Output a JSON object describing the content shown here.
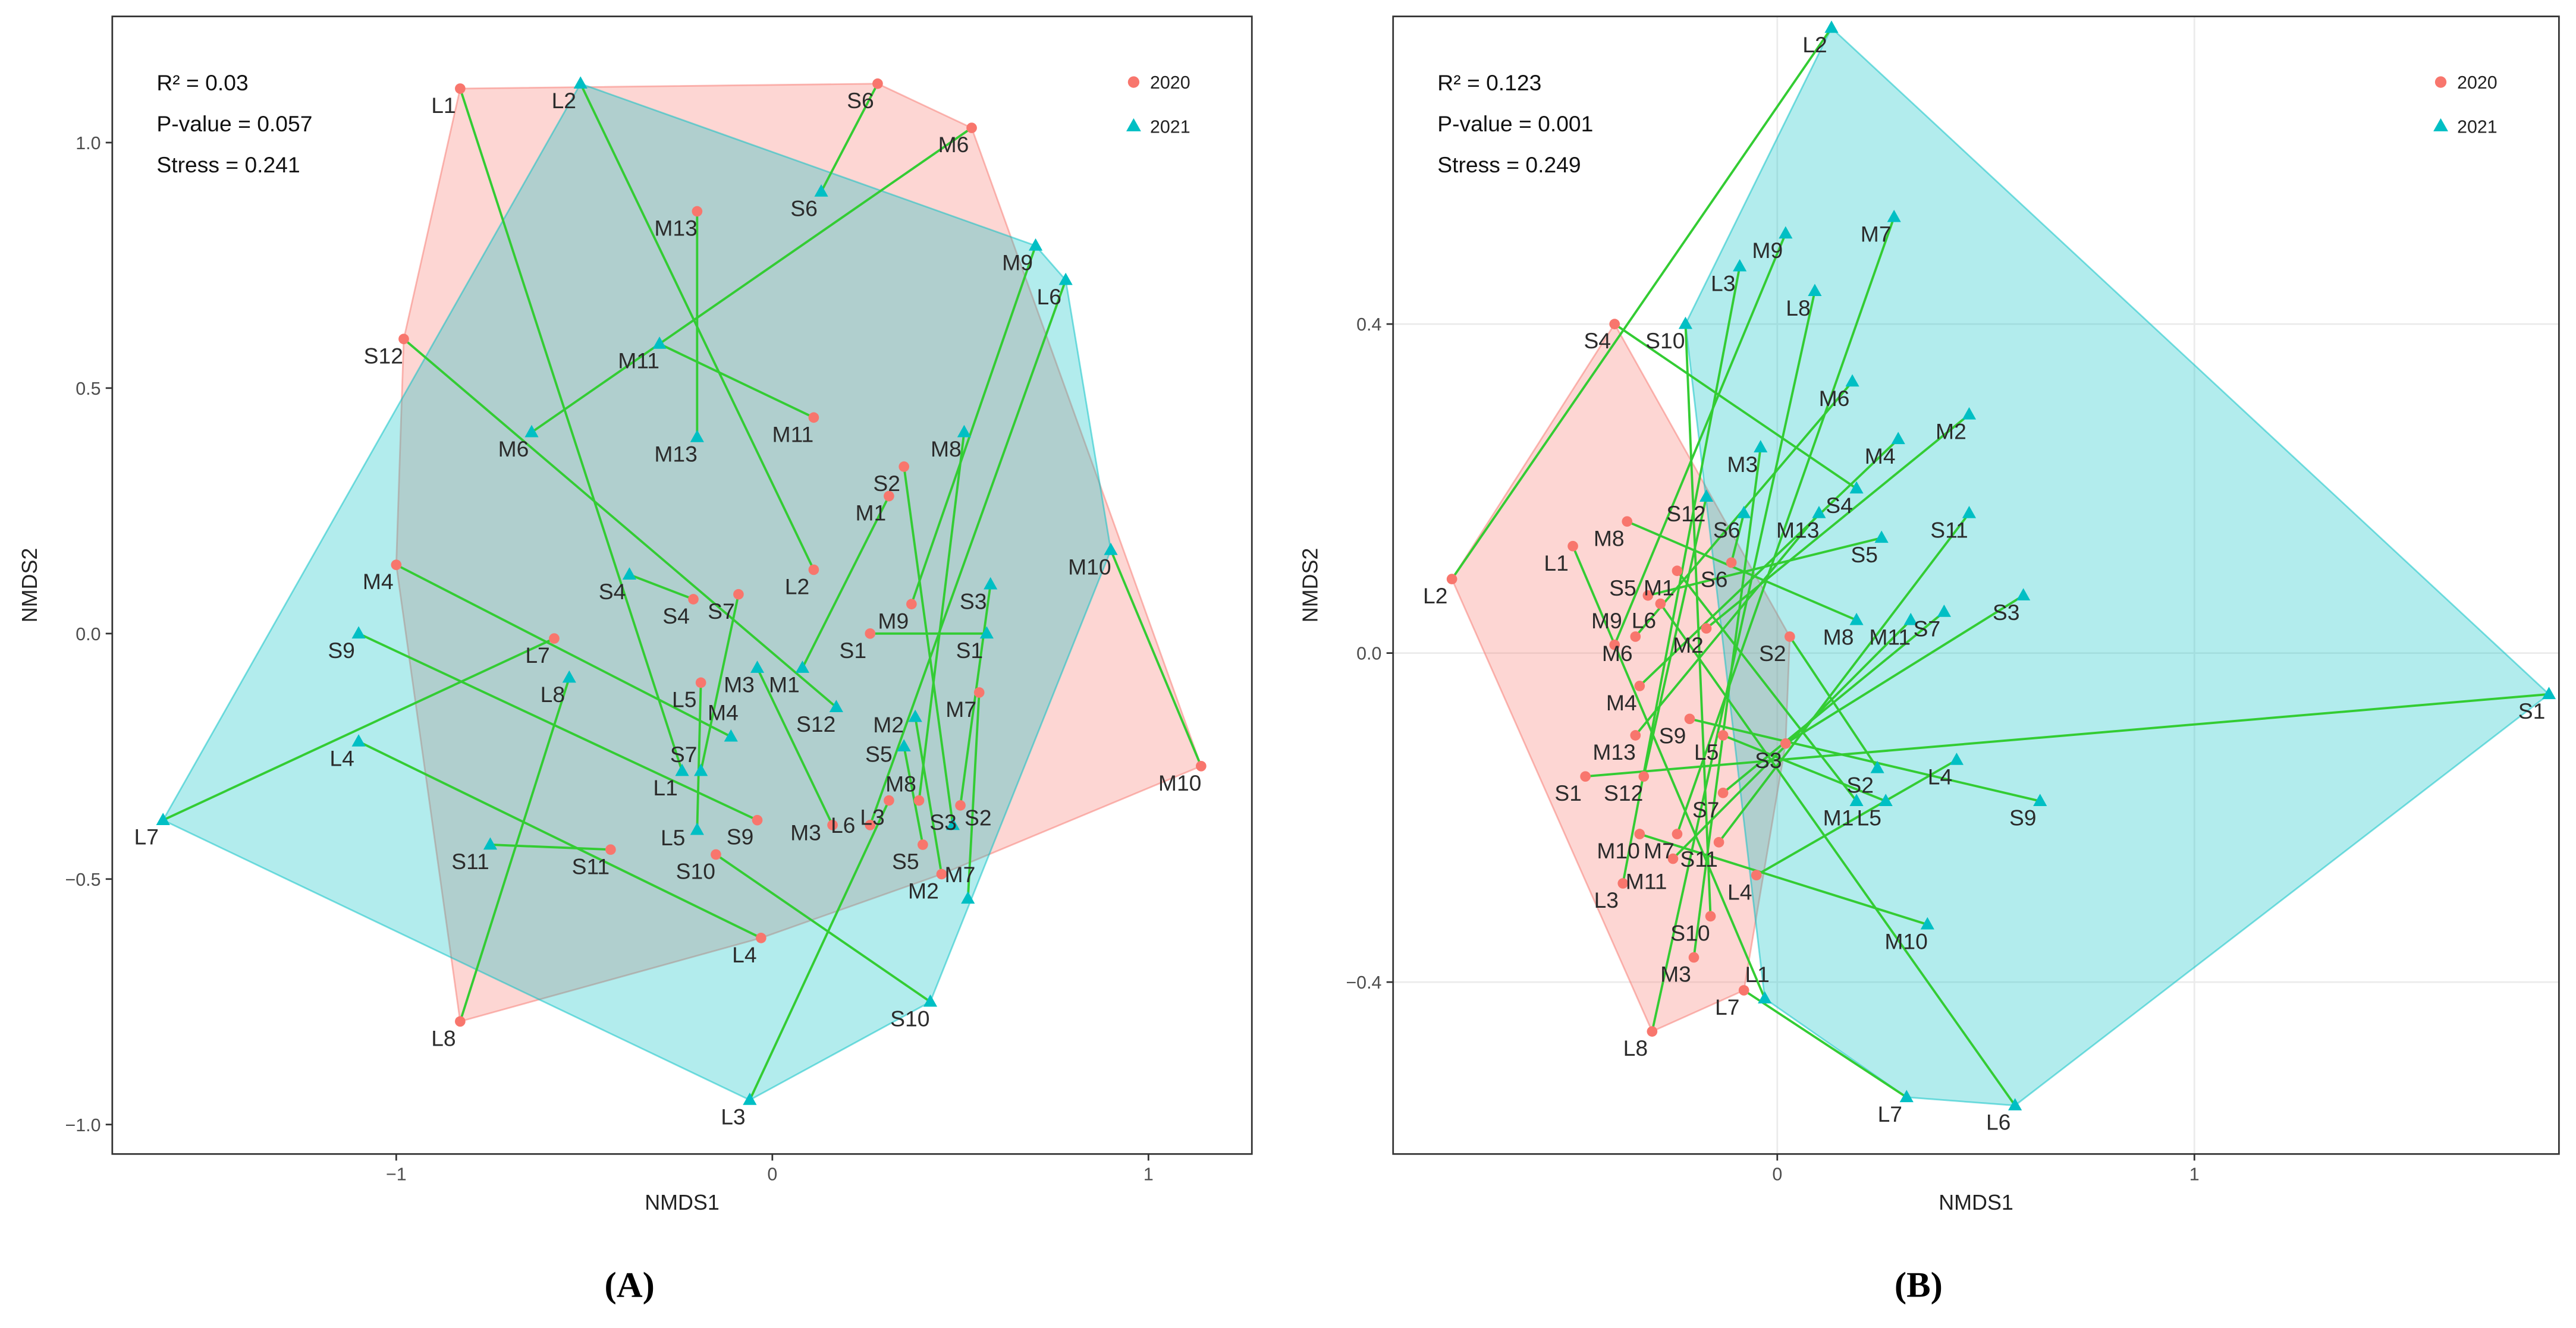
{
  "colors": {
    "y2020": "#F8766D",
    "y2021": "#00BFC4",
    "link": "#33CC33"
  },
  "chart_data": [
    {
      "type": "scatter",
      "panel_label": "(A)",
      "xlabel": "NMDS1",
      "ylabel": "NMDS2",
      "xlim": [
        -1.755,
        1.275
      ],
      "ylim": [
        -1.06,
        1.257
      ],
      "xticks": [
        {
          "v": -1,
          "t": "−1"
        },
        {
          "v": 0,
          "t": "0"
        },
        {
          "v": 1,
          "t": "1"
        }
      ],
      "yticks": [
        {
          "v": -1,
          "t": "−1.0"
        },
        {
          "v": -0.5,
          "t": "−0.5"
        },
        {
          "v": 0,
          "t": "0.0"
        },
        {
          "v": 0.5,
          "t": "0.5"
        },
        {
          "v": 1,
          "t": "1.0"
        }
      ],
      "grid": false,
      "annotations": [
        "R² = 0.03",
        "P-value = 0.057",
        "Stress = 0.241"
      ],
      "legend": {
        "position": "top-right",
        "entries": [
          "2020",
          "2021"
        ]
      },
      "series": [
        {
          "name": "2020",
          "marker": "circle",
          "points": [
            {
              "label": "L1",
              "x": -0.83,
              "y": 1.11
            },
            {
              "label": "L2",
              "x": 0.11,
              "y": 0.13
            },
            {
              "label": "L3",
              "x": 0.31,
              "y": -0.34
            },
            {
              "label": "L4",
              "x": -0.03,
              "y": -0.62
            },
            {
              "label": "L5",
              "x": -0.19,
              "y": -0.1
            },
            {
              "label": "L6",
              "x": 0.26,
              "y": -0.39
            },
            {
              "label": "L7",
              "x": -0.58,
              "y": -0.01
            },
            {
              "label": "L8",
              "x": -0.83,
              "y": -0.79
            },
            {
              "label": "S1",
              "x": 0.26,
              "y": 0.0
            },
            {
              "label": "S2",
              "x": 0.35,
              "y": 0.34
            },
            {
              "label": "S3",
              "x": 0.5,
              "y": -0.35
            },
            {
              "label": "S4",
              "x": -0.21,
              "y": 0.07
            },
            {
              "label": "S5",
              "x": 0.4,
              "y": -0.43
            },
            {
              "label": "S6",
              "x": 0.28,
              "y": 1.12
            },
            {
              "label": "S7",
              "x": -0.09,
              "y": 0.08
            },
            {
              "label": "S9",
              "x": -0.04,
              "y": -0.38
            },
            {
              "label": "S10",
              "x": -0.15,
              "y": -0.45
            },
            {
              "label": "S11",
              "x": -0.43,
              "y": -0.44
            },
            {
              "label": "S12",
              "x": -0.98,
              "y": 0.6
            },
            {
              "label": "M1",
              "x": 0.31,
              "y": 0.28
            },
            {
              "label": "M2",
              "x": 0.45,
              "y": -0.49
            },
            {
              "label": "M3",
              "x": 0.16,
              "y": -0.39
            },
            {
              "label": "M4",
              "x": -1.0,
              "y": 0.14
            },
            {
              "label": "M6",
              "x": 0.53,
              "y": 1.03
            },
            {
              "label": "M7",
              "x": 0.55,
              "y": -0.12
            },
            {
              "label": "M8",
              "x": 0.39,
              "y": -0.34
            },
            {
              "label": "M9",
              "x": 0.37,
              "y": 0.06
            },
            {
              "label": "M10",
              "x": 1.14,
              "y": -0.27
            },
            {
              "label": "M11",
              "x": 0.11,
              "y": 0.44
            },
            {
              "label": "M13",
              "x": -0.2,
              "y": 0.86
            }
          ]
        },
        {
          "name": "2021",
          "marker": "triangle",
          "points": [
            {
              "label": "L1",
              "x": -0.24,
              "y": -0.28
            },
            {
              "label": "L2",
              "x": -0.51,
              "y": 1.12
            },
            {
              "label": "L3",
              "x": -0.06,
              "y": -0.95
            },
            {
              "label": "L4",
              "x": -1.1,
              "y": -0.22
            },
            {
              "label": "L5",
              "x": -0.2,
              "y": -0.4
            },
            {
              "label": "L6",
              "x": 0.78,
              "y": 0.72
            },
            {
              "label": "L7",
              "x": -1.62,
              "y": -0.38
            },
            {
              "label": "L8",
              "x": -0.54,
              "y": -0.09
            },
            {
              "label": "S1",
              "x": 0.57,
              "y": 0.0
            },
            {
              "label": "S2",
              "x": 0.48,
              "y": -0.39
            },
            {
              "label": "S3",
              "x": 0.58,
              "y": 0.1
            },
            {
              "label": "S4",
              "x": -0.38,
              "y": 0.12
            },
            {
              "label": "S5",
              "x": 0.35,
              "y": -0.23
            },
            {
              "label": "S6",
              "x": 0.13,
              "y": 0.9
            },
            {
              "label": "S7",
              "x": -0.19,
              "y": -0.28
            },
            {
              "label": "S9",
              "x": -1.1,
              "y": 0.0
            },
            {
              "label": "S10",
              "x": 0.42,
              "y": -0.75
            },
            {
              "label": "S11",
              "x": -0.75,
              "y": -0.43
            },
            {
              "label": "S12",
              "x": 0.17,
              "y": -0.15
            },
            {
              "label": "M1",
              "x": 0.08,
              "y": -0.07
            },
            {
              "label": "M2",
              "x": 0.38,
              "y": -0.17
            },
            {
              "label": "M3",
              "x": -0.04,
              "y": -0.07
            },
            {
              "label": "M4",
              "x": -0.11,
              "y": -0.21
            },
            {
              "label": "M6",
              "x": -0.64,
              "y": 0.41
            },
            {
              "label": "M7",
              "x": 0.52,
              "y": -0.54
            },
            {
              "label": "M8",
              "x": 0.51,
              "y": 0.41
            },
            {
              "label": "M9",
              "x": 0.7,
              "y": 0.79
            },
            {
              "label": "M10",
              "x": 0.9,
              "y": 0.17
            },
            {
              "label": "M11",
              "x": -0.3,
              "y": 0.59
            },
            {
              "label": "M13",
              "x": -0.2,
              "y": 0.4
            }
          ]
        }
      ]
    },
    {
      "type": "scatter",
      "panel_label": "(B)",
      "xlabel": "NMDS1",
      "ylabel": "NMDS2",
      "xlim": [
        -0.921,
        1.874
      ],
      "ylim": [
        -0.609,
        0.774
      ],
      "xticks": [
        {
          "v": 0,
          "t": "0"
        },
        {
          "v": 1,
          "t": "1"
        }
      ],
      "yticks": [
        {
          "v": -0.4,
          "t": "−0.4"
        },
        {
          "v": 0,
          "t": "0.0"
        },
        {
          "v": 0.4,
          "t": "0.4"
        }
      ],
      "grid": true,
      "annotations": [
        "R² = 0.123",
        "P-value = 0.001",
        "Stress = 0.249"
      ],
      "legend": {
        "position": "top-right",
        "entries": [
          "2020",
          "2021"
        ]
      },
      "series": [
        {
          "name": "2020",
          "marker": "circle",
          "points": [
            {
              "label": "L1",
              "x": -0.49,
              "y": 0.13
            },
            {
              "label": "L2",
              "x": -0.78,
              "y": 0.09
            },
            {
              "label": "L3",
              "x": -0.37,
              "y": -0.28
            },
            {
              "label": "L4",
              "x": -0.05,
              "y": -0.27
            },
            {
              "label": "L5",
              "x": -0.13,
              "y": -0.1
            },
            {
              "label": "L6",
              "x": -0.28,
              "y": 0.06
            },
            {
              "label": "L7",
              "x": -0.08,
              "y": -0.41
            },
            {
              "label": "L8",
              "x": -0.3,
              "y": -0.46
            },
            {
              "label": "S1",
              "x": -0.46,
              "y": -0.15
            },
            {
              "label": "S2",
              "x": 0.03,
              "y": 0.02
            },
            {
              "label": "S3",
              "x": 0.02,
              "y": -0.11
            },
            {
              "label": "S4",
              "x": -0.39,
              "y": 0.4
            },
            {
              "label": "S5",
              "x": -0.31,
              "y": 0.07
            },
            {
              "label": "S6",
              "x": -0.11,
              "y": 0.11
            },
            {
              "label": "S7",
              "x": -0.13,
              "y": -0.17
            },
            {
              "label": "S9",
              "x": -0.21,
              "y": -0.08
            },
            {
              "label": "S10",
              "x": -0.16,
              "y": -0.32
            },
            {
              "label": "S11",
              "x": -0.14,
              "y": -0.23
            },
            {
              "label": "S12",
              "x": -0.32,
              "y": -0.15
            },
            {
              "label": "M1",
              "x": -0.24,
              "y": 0.1
            },
            {
              "label": "M2",
              "x": -0.17,
              "y": 0.03
            },
            {
              "label": "M3",
              "x": -0.2,
              "y": -0.37
            },
            {
              "label": "M4",
              "x": -0.33,
              "y": -0.04
            },
            {
              "label": "M6",
              "x": -0.34,
              "y": 0.02
            },
            {
              "label": "M7",
              "x": -0.24,
              "y": -0.22
            },
            {
              "label": "M8",
              "x": -0.36,
              "y": 0.16
            },
            {
              "label": "M9",
              "x": -0.39,
              "y": 0.01
            },
            {
              "label": "M10",
              "x": -0.33,
              "y": -0.22
            },
            {
              "label": "M11",
              "x": -0.25,
              "y": -0.25
            },
            {
              "label": "M13",
              "x": -0.34,
              "y": -0.1
            }
          ]
        },
        {
          "name": "2021",
          "marker": "triangle",
          "points": [
            {
              "label": "L1",
              "x": -0.03,
              "y": -0.42
            },
            {
              "label": "L2",
              "x": 0.13,
              "y": 0.76
            },
            {
              "label": "L3",
              "x": -0.09,
              "y": 0.47
            },
            {
              "label": "L4",
              "x": 0.43,
              "y": -0.13
            },
            {
              "label": "L5",
              "x": 0.26,
              "y": -0.18
            },
            {
              "label": "L6",
              "x": 0.57,
              "y": -0.55
            },
            {
              "label": "L7",
              "x": 0.31,
              "y": -0.54
            },
            {
              "label": "L8",
              "x": 0.09,
              "y": 0.44
            },
            {
              "label": "S1",
              "x": 1.85,
              "y": -0.05
            },
            {
              "label": "S2",
              "x": 0.24,
              "y": -0.14
            },
            {
              "label": "S3",
              "x": 0.59,
              "y": 0.07
            },
            {
              "label": "S4",
              "x": 0.19,
              "y": 0.2
            },
            {
              "label": "S5",
              "x": 0.25,
              "y": 0.14
            },
            {
              "label": "S6",
              "x": -0.08,
              "y": 0.17
            },
            {
              "label": "S7",
              "x": 0.4,
              "y": 0.05
            },
            {
              "label": "S9",
              "x": 0.63,
              "y": -0.18
            },
            {
              "label": "S10",
              "x": -0.22,
              "y": 0.4
            },
            {
              "label": "S11",
              "x": 0.46,
              "y": 0.17
            },
            {
              "label": "S12",
              "x": -0.17,
              "y": 0.19
            },
            {
              "label": "M1",
              "x": 0.19,
              "y": -0.18
            },
            {
              "label": "M2",
              "x": 0.46,
              "y": 0.29
            },
            {
              "label": "M3",
              "x": -0.04,
              "y": 0.25
            },
            {
              "label": "M4",
              "x": 0.29,
              "y": 0.26
            },
            {
              "label": "M6",
              "x": 0.18,
              "y": 0.33
            },
            {
              "label": "M7",
              "x": 0.28,
              "y": 0.53
            },
            {
              "label": "M8",
              "x": 0.19,
              "y": 0.04
            },
            {
              "label": "M9",
              "x": 0.02,
              "y": 0.51
            },
            {
              "label": "M10",
              "x": 0.36,
              "y": -0.33
            },
            {
              "label": "M11",
              "x": 0.32,
              "y": 0.04
            },
            {
              "label": "M13",
              "x": 0.1,
              "y": 0.17
            }
          ]
        }
      ]
    }
  ]
}
